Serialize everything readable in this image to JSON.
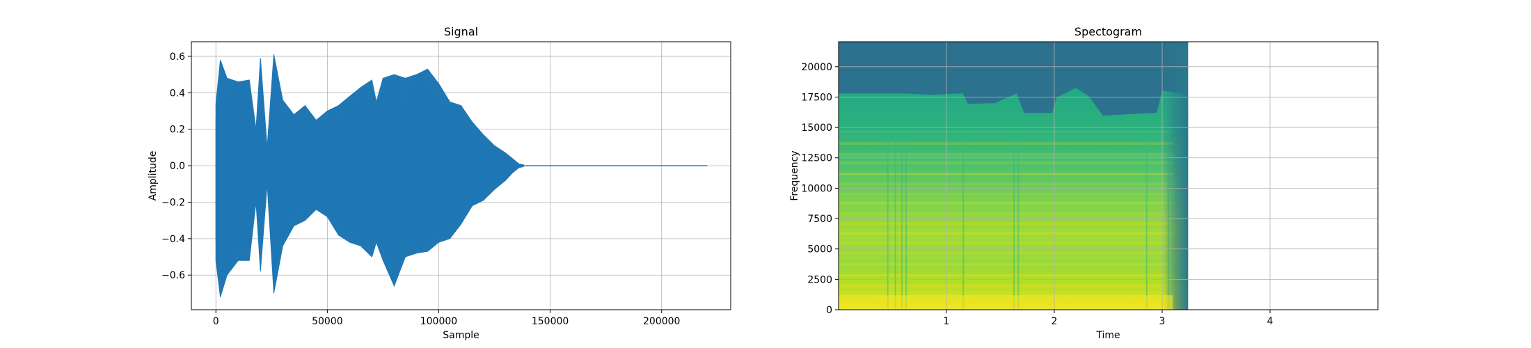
{
  "chart_data": [
    {
      "type": "line",
      "title": "Signal",
      "xlabel": "Sample",
      "ylabel": "Amplitude",
      "xlim": [
        -11000,
        231000
      ],
      "ylim": [
        -0.79,
        0.68
      ],
      "xticks": [
        0,
        50000,
        100000,
        150000,
        200000
      ],
      "yticks": [
        -0.6,
        -0.4,
        -0.2,
        0.0,
        0.2,
        0.4,
        0.6
      ],
      "ytick_labels": [
        "−0.6",
        "−0.4",
        "−0.2",
        "0.0",
        "0.2",
        "0.4",
        "0.6"
      ],
      "grid": true,
      "color": "#1f77b4",
      "x_end": 220500,
      "signal_end": 138000,
      "envelope": {
        "x": [
          0,
          2000,
          5000,
          10000,
          15000,
          18000,
          20000,
          23000,
          26000,
          30000,
          35000,
          40000,
          45000,
          50000,
          55000,
          60000,
          65000,
          70000,
          72000,
          75000,
          80000,
          85000,
          90000,
          95000,
          100000,
          105000,
          110000,
          115000,
          120000,
          125000,
          130000,
          133000,
          136000,
          138000
        ],
        "pos": [
          0.34,
          0.58,
          0.48,
          0.46,
          0.47,
          0.2,
          0.59,
          0.1,
          0.61,
          0.36,
          0.28,
          0.33,
          0.25,
          0.3,
          0.33,
          0.38,
          0.43,
          0.47,
          0.35,
          0.48,
          0.5,
          0.48,
          0.5,
          0.53,
          0.45,
          0.35,
          0.33,
          0.24,
          0.17,
          0.11,
          0.07,
          0.04,
          0.01,
          0.005
        ],
        "neg": [
          -0.52,
          -0.72,
          -0.6,
          -0.52,
          -0.52,
          -0.2,
          -0.58,
          -0.1,
          -0.7,
          -0.44,
          -0.33,
          -0.3,
          -0.24,
          -0.28,
          -0.38,
          -0.42,
          -0.44,
          -0.5,
          -0.42,
          -0.52,
          -0.66,
          -0.5,
          -0.48,
          -0.47,
          -0.42,
          -0.4,
          -0.32,
          -0.22,
          -0.19,
          -0.13,
          -0.08,
          -0.04,
          -0.01,
          -0.005
        ]
      }
    },
    {
      "type": "heatmap",
      "title": "Spectogram",
      "xlabel": "Time",
      "ylabel": "Frequency",
      "xlim": [
        0,
        5
      ],
      "ylim": [
        0,
        22050
      ],
      "xticks": [
        1,
        2,
        3,
        4
      ],
      "yticks": [
        0,
        2500,
        5000,
        7500,
        10000,
        12500,
        15000,
        17500,
        20000
      ],
      "grid": true,
      "colormap": "viridis",
      "data_end_time": 3.24,
      "cutoff_frequency": 17800,
      "cutoff_frequency_late": 16200
    }
  ]
}
